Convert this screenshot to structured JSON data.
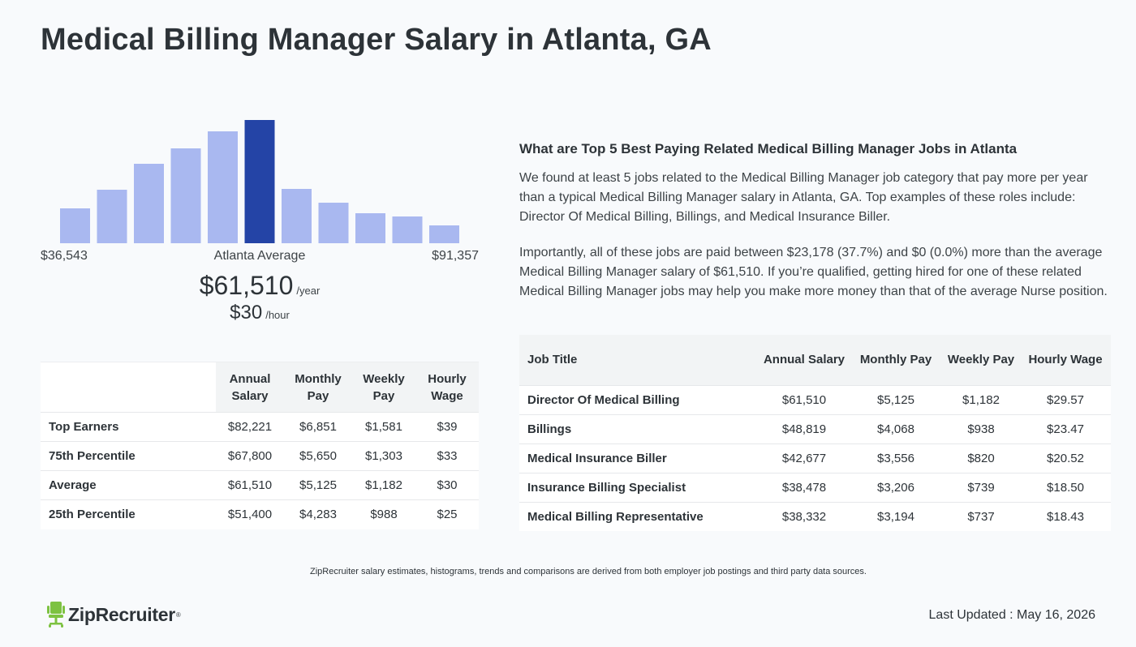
{
  "page_title": "Medical Billing Manager Salary in Atlanta, GA",
  "colors": {
    "bar": "#a9b8f0",
    "bar_highlight": "#2444a6",
    "logo_green": "#7dc241"
  },
  "chart_data": {
    "type": "bar",
    "title": "",
    "categories": [
      "1",
      "2",
      "3",
      "4",
      "5",
      "6",
      "7",
      "8",
      "9",
      "10",
      "11"
    ],
    "values": [
      43,
      66,
      98,
      117,
      138,
      152,
      67,
      50,
      37,
      33,
      22
    ],
    "highlight_index": 5,
    "ylim": [
      0,
      152
    ],
    "xlabel": "",
    "ylabel": "",
    "grid": false
  },
  "histogram": {
    "min_label": "$36,543",
    "mid_label": "Atlanta Average",
    "max_label": "$91,357"
  },
  "average": {
    "annual": "$61,510",
    "annual_unit": "/year",
    "hourly": "$30",
    "hourly_unit": "/hour"
  },
  "percentile_table": {
    "headers": [
      "Annual Salary",
      "Monthly Pay",
      "Weekly Pay",
      "Hourly Wage"
    ],
    "rows": [
      {
        "label": "Top Earners",
        "annual": "$82,221",
        "monthly": "$6,851",
        "weekly": "$1,581",
        "hourly": "$39"
      },
      {
        "label": "75th Percentile",
        "annual": "$67,800",
        "monthly": "$5,650",
        "weekly": "$1,303",
        "hourly": "$33"
      },
      {
        "label": "Average",
        "annual": "$61,510",
        "monthly": "$5,125",
        "weekly": "$1,182",
        "hourly": "$30"
      },
      {
        "label": "25th Percentile",
        "annual": "$51,400",
        "monthly": "$4,283",
        "weekly": "$988",
        "hourly": "$25"
      }
    ]
  },
  "related": {
    "heading": "What are Top 5 Best Paying Related Medical Billing Manager Jobs in Atlanta",
    "paragraph1": "We found at least 5 jobs related to the Medical Billing Manager job category that pay more per year than a typical Medical Billing Manager salary in Atlanta, GA. Top examples of these roles include: Director Of Medical Billing, Billings, and Medical Insurance Biller.",
    "paragraph2": "Importantly, all of these jobs are paid between $23,178 (37.7%) and $0 (0.0%) more than the average Medical Billing Manager salary of $61,510. If you’re qualified, getting hired for one of these related Medical Billing Manager jobs may help you make more money than that of the average Nurse position."
  },
  "jobs_table": {
    "headers": [
      "Job Title",
      "Annual Salary",
      "Monthly Pay",
      "Weekly Pay",
      "Hourly Wage"
    ],
    "rows": [
      {
        "title": "Director Of Medical Billing",
        "annual": "$61,510",
        "monthly": "$5,125",
        "weekly": "$1,182",
        "hourly": "$29.57"
      },
      {
        "title": "Billings",
        "annual": "$48,819",
        "monthly": "$4,068",
        "weekly": "$938",
        "hourly": "$23.47"
      },
      {
        "title": "Medical Insurance Biller",
        "annual": "$42,677",
        "monthly": "$3,556",
        "weekly": "$820",
        "hourly": "$20.52"
      },
      {
        "title": "Insurance Billing Specialist",
        "annual": "$38,478",
        "monthly": "$3,206",
        "weekly": "$739",
        "hourly": "$18.50"
      },
      {
        "title": "Medical Billing Representative",
        "annual": "$38,332",
        "monthly": "$3,194",
        "weekly": "$737",
        "hourly": "$18.43"
      }
    ]
  },
  "footnote": "ZipRecruiter salary estimates, histograms, trends and comparisons are derived from both employer job postings and third party data sources.",
  "logo": {
    "text": "ZipRecruiter",
    "icon": "chair-icon"
  },
  "last_updated": "Last Updated : May 16, 2026"
}
